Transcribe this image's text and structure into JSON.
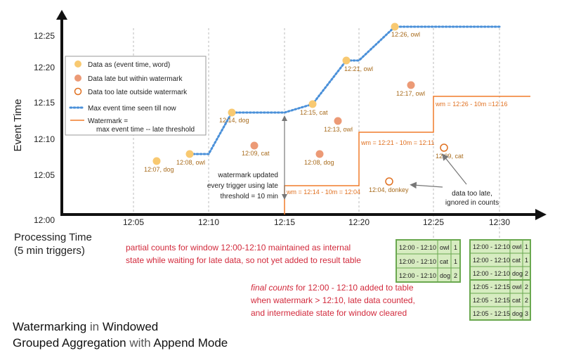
{
  "axes": {
    "y_title": "Event Time",
    "x_title_line1": "Processing Time",
    "x_title_line2": "(5 min triggers)",
    "y_ticks": [
      "12:00",
      "12:05",
      "12:10",
      "12:15",
      "12:20",
      "12:25"
    ],
    "x_ticks": [
      "12:05",
      "12:10",
      "12:15",
      "12:20",
      "12:25",
      "12:30"
    ]
  },
  "legend": {
    "item1": "Data as (event time, word)",
    "item2": "Data late but within watermark",
    "item3": "Data too late outside watermark",
    "item4": "Max event time seen till now",
    "item5_line1": "Watermark =",
    "item5_line2": "max event time -- late threshold"
  },
  "points": {
    "p1": "12:07, dog",
    "p2": "12:08, owl",
    "p3": "12:14, dog",
    "p4": "12:09, cat",
    "p5": "12:15, cat",
    "p6": "12:08, dog",
    "p7": "12:13, owl",
    "p8": "12:21, owl",
    "p9": "12:04, donkey",
    "p10": "12:26, owl",
    "p11": "12:17, owl",
    "p12": "12:09, cat"
  },
  "watermarks": {
    "w1": "wm = 12:14 - 10m = 12:04",
    "w2": "wm = 12:21 - 10m = 12:11",
    "w3": "wm = 12:26 - 10m =12:16"
  },
  "annotations": {
    "wm_updated_1": "watermark updated",
    "wm_updated_2": "every trigger using late",
    "wm_updated_3": "threshold = 10 min",
    "too_late_1": "data too late,",
    "too_late_2": "ignored in counts"
  },
  "notes": {
    "partial_1": "partial counts for window 12:00-12:10 maintained as internal",
    "partial_2": "state while waiting for late data, so not yet added  to result table",
    "final_1_italic": "final counts",
    "final_1_rest": " for 12:00 - 12:10 added to table",
    "final_2": "when watermark > 12:10, late data counted,",
    "final_3": "and intermediate state for window cleared"
  },
  "caption": {
    "l1_a": "Watermarking",
    "l1_b": " in ",
    "l1_c": "Windowed",
    "l2_a": "Grouped Aggregation",
    "l2_b": " with ",
    "l2_c": "Append Mode"
  },
  "tables": {
    "t1": [
      [
        "12:00 - 12:10",
        "owl",
        "1"
      ],
      [
        "12:00 - 12:10",
        "cat",
        "1"
      ],
      [
        "12:00 - 12:10",
        "dog",
        "2"
      ]
    ],
    "t2": [
      [
        "12:00 - 12:10",
        "owl",
        "1"
      ],
      [
        "12:00 - 12:10",
        "cat",
        "1"
      ],
      [
        "12:00 - 12:10",
        "dog",
        "2"
      ],
      [
        "12:05 - 12:15",
        "owl",
        "2"
      ],
      [
        "12:05 - 12:15",
        "cat",
        "2"
      ],
      [
        "12:05 - 12:15",
        "dog",
        "3"
      ]
    ]
  },
  "colors": {
    "on_time": "#f8c971",
    "late_ok": "#ec9a76",
    "too_late": "#e07020",
    "max_line": "#4a90d9",
    "watermark_line": "#f07c2a",
    "note_red": "#d22a3c",
    "table_fill": "#d7ecc1",
    "table_border": "#6aa84f"
  }
}
